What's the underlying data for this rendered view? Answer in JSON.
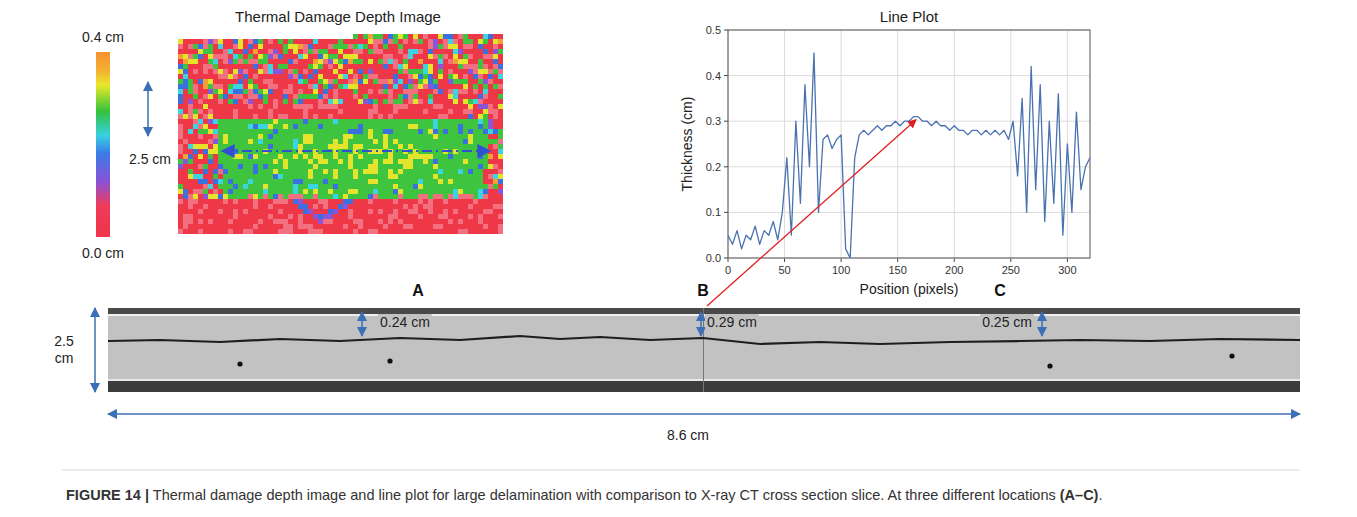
{
  "chart_data": {
    "type": "line",
    "title": "Line Plot",
    "x_label": "Position (pixels)",
    "y_label": "Thickness (cm)",
    "x": [
      0,
      4,
      8,
      12,
      16,
      20,
      24,
      28,
      32,
      36,
      40,
      44,
      48,
      52,
      56,
      60,
      64,
      68,
      72,
      76,
      80,
      84,
      88,
      92,
      96,
      100,
      104,
      108,
      112,
      116,
      120,
      124,
      128,
      132,
      136,
      140,
      144,
      148,
      152,
      156,
      160,
      164,
      168,
      172,
      176,
      180,
      184,
      188,
      192,
      196,
      200,
      204,
      208,
      212,
      216,
      220,
      224,
      228,
      232,
      236,
      240,
      244,
      248,
      252,
      256,
      260,
      264,
      268,
      272,
      276,
      280,
      284,
      288,
      292,
      296,
      300,
      304,
      308,
      312,
      316,
      320
    ],
    "values": [
      0.05,
      0.03,
      0.06,
      0.02,
      0.05,
      0.04,
      0.07,
      0.03,
      0.06,
      0.05,
      0.08,
      0.04,
      0.1,
      0.22,
      0.05,
      0.3,
      0.12,
      0.38,
      0.2,
      0.45,
      0.1,
      0.26,
      0.27,
      0.24,
      0.26,
      0.27,
      0.02,
      0.0,
      0.22,
      0.27,
      0.28,
      0.27,
      0.28,
      0.29,
      0.28,
      0.29,
      0.29,
      0.3,
      0.29,
      0.3,
      0.3,
      0.31,
      0.31,
      0.3,
      0.3,
      0.29,
      0.3,
      0.29,
      0.29,
      0.28,
      0.29,
      0.28,
      0.28,
      0.27,
      0.28,
      0.28,
      0.27,
      0.28,
      0.27,
      0.28,
      0.27,
      0.28,
      0.26,
      0.3,
      0.18,
      0.35,
      0.1,
      0.42,
      0.15,
      0.38,
      0.08,
      0.3,
      0.12,
      0.36,
      0.05,
      0.25,
      0.1,
      0.32,
      0.15,
      0.2,
      0.22
    ],
    "color": "#4a72b0",
    "xlim": [
      0,
      320
    ],
    "xticks": [
      0,
      50,
      100,
      150,
      200,
      250,
      300
    ],
    "ylim": [
      0,
      0.5
    ],
    "yticks": [
      {
        "value": 0,
        "label": "0.0"
      },
      0.1,
      0.2,
      0.3,
      0.4,
      0.5
    ],
    "grid": true
  },
  "thermal_image": {
    "title": "Thermal Damage Depth Image",
    "colorbar_max_label": "0.4 cm",
    "colorbar_min_label": "0.0 cm",
    "scale_label": "2.5 cm"
  },
  "ct_slices": {
    "panels": [
      {
        "letter": "A",
        "depth_label": "0.24 cm"
      },
      {
        "letter": "B",
        "depth_label": "0.29 cm"
      },
      {
        "letter": "C",
        "depth_label": "0.25 cm"
      }
    ],
    "height_label": "2.5 cm",
    "width_label": "8.6 cm"
  },
  "caption": {
    "label": "FIGURE 14 |",
    "text": " Thermal damage depth image and line plot for large delamination with comparison to X-ray CT cross section slice. At three different locations ",
    "ref": "(A–C)",
    "end": "."
  }
}
